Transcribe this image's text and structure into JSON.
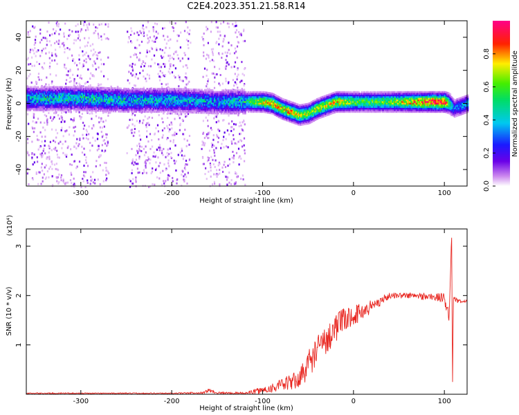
{
  "title": "C2E4.2023.351.21.58.R14",
  "chart_data": [
    {
      "type": "heatmap",
      "xlabel": "Height of straight line (km)",
      "ylabel": "Frequency (Hz)",
      "xlim": [
        -360,
        125
      ],
      "ylim": [
        -50,
        50
      ],
      "xticks": [
        -300,
        -200,
        -100,
        0,
        100
      ],
      "yticks": [
        -40,
        -20,
        0,
        20,
        40
      ],
      "colorbar": {
        "label": "Normalized spectral amplitude",
        "range": [
          0,
          1
        ],
        "ticks": [
          "0.0",
          "0.2",
          "0.4",
          "0.6",
          "0.8"
        ],
        "colormap": "rainbow (white-violet-blue-cyan-green-yellow-red-magenta)"
      },
      "noise_columns": [
        {
          "x_start": -360,
          "x_end": -270
        },
        {
          "x_start": -250,
          "x_end": -180
        },
        {
          "x_start": -168,
          "x_end": -120
        }
      ],
      "ridge": {
        "x": [
          -360,
          -300,
          -250,
          -200,
          -150,
          -120,
          -100,
          -90,
          -80,
          -70,
          -60,
          -50,
          -40,
          -30,
          -20,
          -10,
          0,
          20,
          50,
          80,
          100,
          105,
          110,
          125
        ],
        "freq": [
          3,
          3,
          2,
          2,
          1,
          1,
          1,
          0,
          -3,
          -5,
          -7,
          -6,
          -3,
          -1,
          1,
          1,
          1,
          1,
          1,
          1,
          1,
          0,
          -3,
          0
        ],
        "amplitude": [
          0.45,
          0.5,
          0.45,
          0.45,
          0.4,
          0.5,
          0.75,
          0.8,
          0.75,
          0.8,
          0.7,
          0.65,
          0.7,
          0.7,
          0.75,
          0.7,
          0.6,
          0.6,
          0.7,
          0.9,
          0.95,
          0.6,
          0.3,
          0.4
        ]
      }
    },
    {
      "type": "line",
      "xlabel": "Height of straight line (km)",
      "ylabel": "SNR (10 * v/v)",
      "y_multiplier": "(x10⁴)",
      "xlim": [
        -360,
        125
      ],
      "ylim": [
        0,
        3.35
      ],
      "xticks": [
        -300,
        -200,
        -100,
        0,
        100
      ],
      "yticks": [
        1,
        2,
        3
      ],
      "series": [
        {
          "color": "#e8241e",
          "x": [
            -360,
            -300,
            -200,
            -165,
            -160,
            -150,
            -120,
            -100,
            -80,
            -60,
            -50,
            -40,
            -30,
            -20,
            -10,
            0,
            10,
            20,
            30,
            40,
            60,
            80,
            100,
            105,
            108,
            109,
            110,
            115,
            125
          ],
          "y": [
            0.02,
            0.02,
            0.02,
            0.03,
            0.08,
            0.03,
            0.02,
            0.08,
            0.18,
            0.3,
            0.6,
            0.9,
            1.1,
            1.35,
            1.5,
            1.6,
            1.68,
            1.78,
            1.9,
            2.0,
            2.0,
            1.98,
            1.95,
            1.6,
            3.2,
            0.25,
            1.95,
            1.88,
            1.88
          ],
          "noise": [
            0.01,
            0.01,
            0.01,
            0.02,
            0.04,
            0.02,
            0.02,
            0.08,
            0.12,
            0.2,
            0.3,
            0.3,
            0.3,
            0.3,
            0.25,
            0.2,
            0.18,
            0.15,
            0.1,
            0.06,
            0.06,
            0.08,
            0.1,
            0.2,
            0.05,
            0.0,
            0.05,
            0.04,
            0.03
          ]
        }
      ]
    }
  ]
}
